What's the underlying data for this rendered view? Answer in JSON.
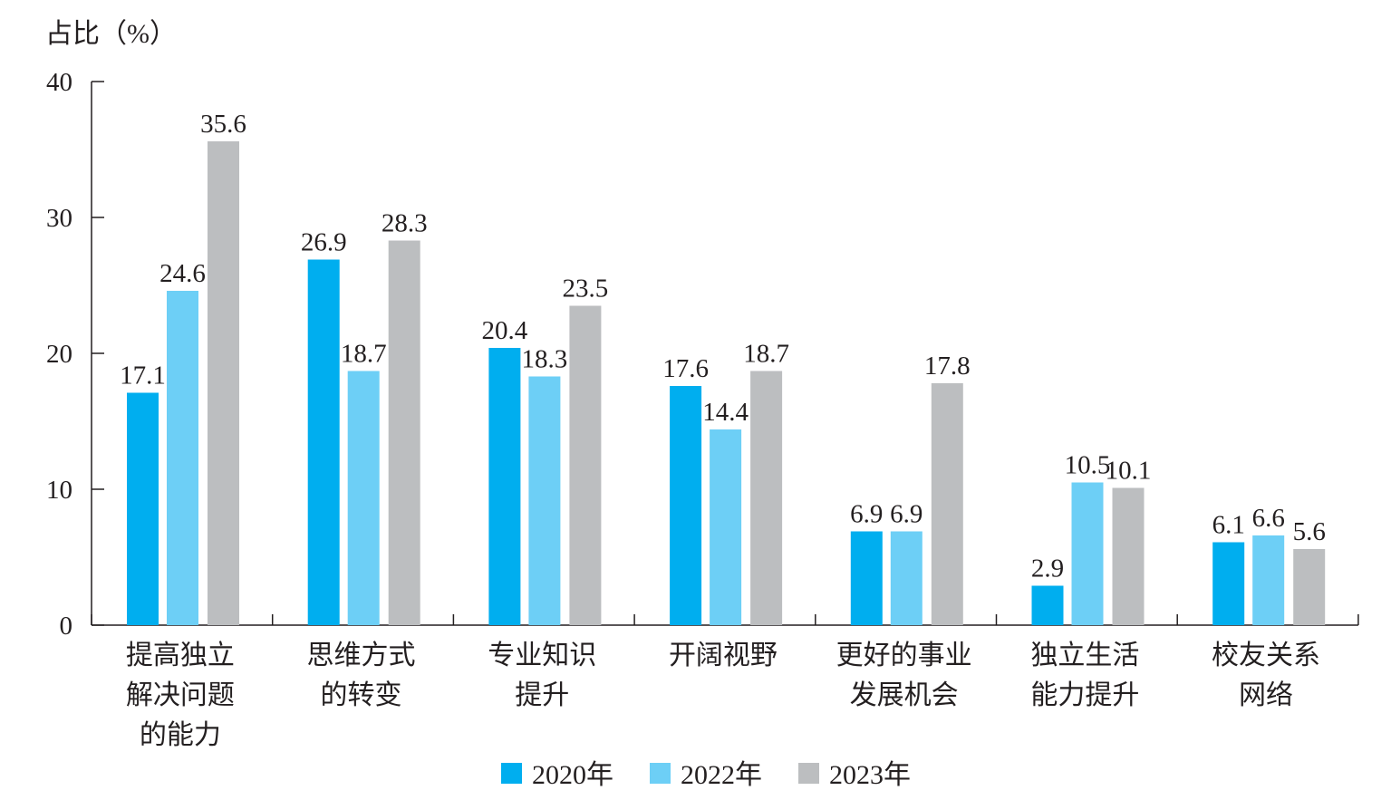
{
  "chart_data": {
    "type": "bar",
    "ylabel": "占比（%）",
    "ylim": [
      0,
      40
    ],
    "yticks": [
      0,
      10,
      20,
      30,
      40
    ],
    "categories": [
      [
        "提高独立",
        "解决问题",
        "的能力"
      ],
      [
        "思维方式",
        "的转变"
      ],
      [
        "专业知识",
        "提升"
      ],
      [
        "开阔视野"
      ],
      [
        "更好的事业",
        "发展机会"
      ],
      [
        "独立生活",
        "能力提升"
      ],
      [
        "校友关系",
        "网络"
      ]
    ],
    "series": [
      {
        "name": "2020年",
        "color": "#00aeef",
        "values": [
          17.1,
          26.9,
          20.4,
          17.6,
          6.9,
          2.9,
          6.1
        ]
      },
      {
        "name": "2022年",
        "color": "#6dcff6",
        "values": [
          24.6,
          18.7,
          18.3,
          14.4,
          6.9,
          10.5,
          6.6
        ]
      },
      {
        "name": "2023年",
        "color": "#bcbec0",
        "values": [
          35.6,
          28.3,
          23.5,
          18.7,
          17.8,
          10.1,
          5.6
        ]
      }
    ],
    "legend": "bottom-center",
    "grid": false
  }
}
